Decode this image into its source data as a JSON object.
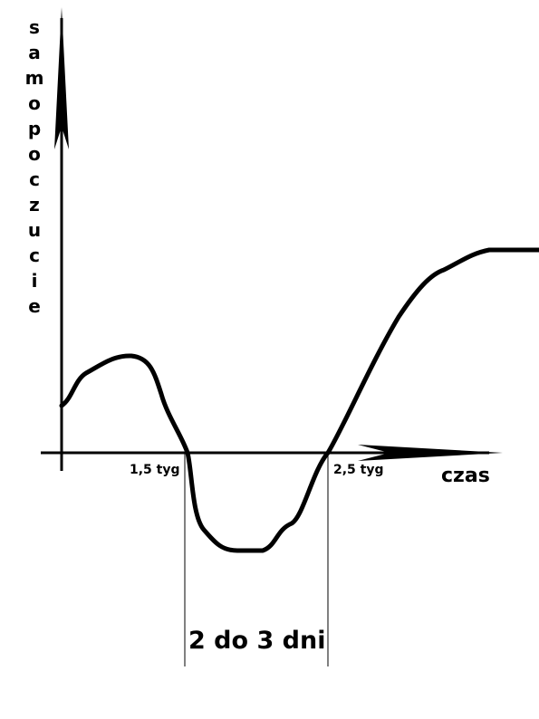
{
  "axis_labels": {
    "y": "samopoczucie",
    "x": "czas"
  },
  "markers": [
    "1,5 tyg",
    "2,5 tyg"
  ],
  "interval_label": "2 do 3 dni"
}
